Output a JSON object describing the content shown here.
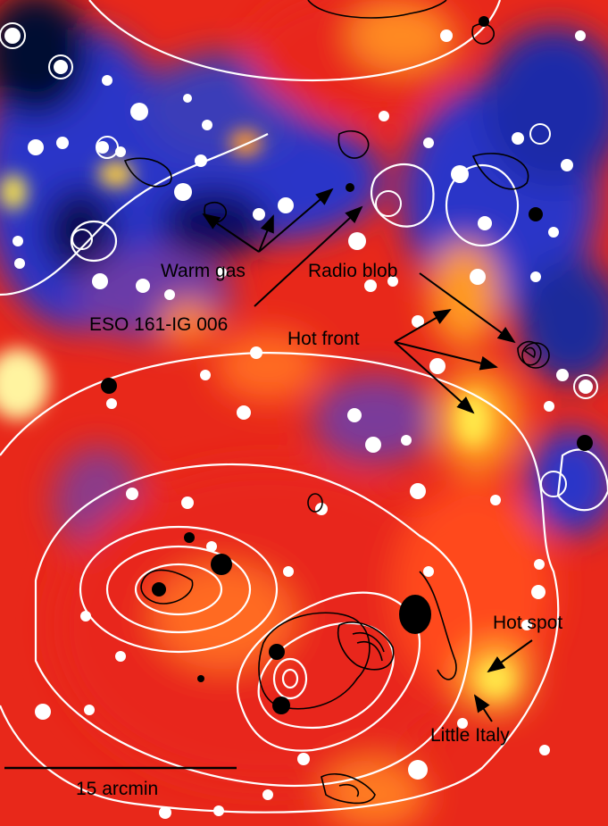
{
  "labels": {
    "warm_gas": "Warm gas",
    "radio_blob": "Radio blob",
    "eso": "ESO 161-IG 006",
    "hot_front": "Hot front",
    "hot_spot": "Hot spot",
    "little_italy": "Little Italy",
    "scale_bar": "15 arcmin"
  },
  "colors": {
    "cold": "#0a1050",
    "cool": "#2533c8",
    "mid": "#7a3a9a",
    "warm": "#e8281a",
    "hot": "#ff7a1a",
    "hottest": "#ffe84a",
    "contour_xray": "#ffffff",
    "contour_radio": "#000000",
    "annotation": "#000000"
  }
}
